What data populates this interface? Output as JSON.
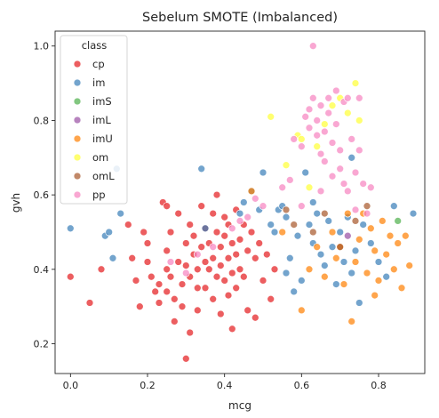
{
  "chart_data": {
    "type": "scatter",
    "title": "Sebelum SMOTE (Imbalanced)",
    "xlabel": "mcg",
    "ylabel": "gvh",
    "xlim": [
      -0.04,
      0.92
    ],
    "ylim": [
      0.12,
      1.04
    ],
    "xticks": [
      0.0,
      0.2,
      0.4,
      0.6,
      0.8
    ],
    "yticks": [
      0.2,
      0.4,
      0.6,
      0.8,
      1.0
    ],
    "xtick_labels": [
      "0.0",
      "0.2",
      "0.4",
      "0.6",
      "0.8"
    ],
    "ytick_labels": [
      "0.2",
      "0.4",
      "0.6",
      "0.8",
      "1.0"
    ],
    "grid": false,
    "legend": {
      "title": "class",
      "placement": "top-left"
    },
    "series": [
      {
        "name": "cp",
        "color": "#e41a1c",
        "points": [
          [
            0.0,
            0.38
          ],
          [
            0.05,
            0.31
          ],
          [
            0.08,
            0.4
          ],
          [
            0.15,
            0.52
          ],
          [
            0.16,
            0.43
          ],
          [
            0.17,
            0.37
          ],
          [
            0.18,
            0.3
          ],
          [
            0.19,
            0.5
          ],
          [
            0.2,
            0.47
          ],
          [
            0.2,
            0.42
          ],
          [
            0.21,
            0.38
          ],
          [
            0.22,
            0.34
          ],
          [
            0.23,
            0.36
          ],
          [
            0.23,
            0.31
          ],
          [
            0.24,
            0.58
          ],
          [
            0.25,
            0.57
          ],
          [
            0.25,
            0.45
          ],
          [
            0.25,
            0.4
          ],
          [
            0.25,
            0.34
          ],
          [
            0.26,
            0.5
          ],
          [
            0.26,
            0.38
          ],
          [
            0.27,
            0.32
          ],
          [
            0.27,
            0.26
          ],
          [
            0.28,
            0.55
          ],
          [
            0.28,
            0.42
          ],
          [
            0.29,
            0.36
          ],
          [
            0.29,
            0.3
          ],
          [
            0.3,
            0.47
          ],
          [
            0.3,
            0.41
          ],
          [
            0.3,
            0.16
          ],
          [
            0.31,
            0.52
          ],
          [
            0.31,
            0.38
          ],
          [
            0.31,
            0.23
          ],
          [
            0.32,
            0.49
          ],
          [
            0.32,
            0.44
          ],
          [
            0.33,
            0.4
          ],
          [
            0.33,
            0.35
          ],
          [
            0.33,
            0.29
          ],
          [
            0.34,
            0.57
          ],
          [
            0.34,
            0.46
          ],
          [
            0.35,
            0.51
          ],
          [
            0.35,
            0.42
          ],
          [
            0.35,
            0.35
          ],
          [
            0.36,
            0.47
          ],
          [
            0.36,
            0.4
          ],
          [
            0.37,
            0.55
          ],
          [
            0.37,
            0.43
          ],
          [
            0.37,
            0.32
          ],
          [
            0.38,
            0.6
          ],
          [
            0.38,
            0.5
          ],
          [
            0.38,
            0.38
          ],
          [
            0.39,
            0.46
          ],
          [
            0.39,
            0.41
          ],
          [
            0.39,
            0.28
          ],
          [
            0.4,
            0.54
          ],
          [
            0.4,
            0.49
          ],
          [
            0.4,
            0.37
          ],
          [
            0.41,
            0.52
          ],
          [
            0.41,
            0.43
          ],
          [
            0.41,
            0.33
          ],
          [
            0.42,
            0.47
          ],
          [
            0.42,
            0.39
          ],
          [
            0.42,
            0.24
          ],
          [
            0.43,
            0.56
          ],
          [
            0.43,
            0.44
          ],
          [
            0.43,
            0.35
          ],
          [
            0.44,
            0.48
          ],
          [
            0.44,
            0.4
          ],
          [
            0.45,
            0.52
          ],
          [
            0.45,
            0.38
          ],
          [
            0.46,
            0.45
          ],
          [
            0.46,
            0.29
          ],
          [
            0.47,
            0.5
          ],
          [
            0.48,
            0.43
          ],
          [
            0.48,
            0.27
          ],
          [
            0.49,
            0.47
          ],
          [
            0.5,
            0.37
          ],
          [
            0.51,
            0.44
          ],
          [
            0.52,
            0.32
          ],
          [
            0.53,
            0.4
          ]
        ]
      },
      {
        "name": "im",
        "color": "#377eb8",
        "points": [
          [
            0.0,
            0.51
          ],
          [
            0.09,
            0.49
          ],
          [
            0.1,
            0.5
          ],
          [
            0.11,
            0.43
          ],
          [
            0.12,
            0.67
          ],
          [
            0.13,
            0.55
          ],
          [
            0.34,
            0.67
          ],
          [
            0.35,
            0.51
          ],
          [
            0.44,
            0.55
          ],
          [
            0.45,
            0.58
          ],
          [
            0.47,
            0.61
          ],
          [
            0.49,
            0.56
          ],
          [
            0.5,
            0.66
          ],
          [
            0.52,
            0.52
          ],
          [
            0.53,
            0.5
          ],
          [
            0.54,
            0.56
          ],
          [
            0.55,
            0.57
          ],
          [
            0.56,
            0.54
          ],
          [
            0.56,
            0.39
          ],
          [
            0.57,
            0.43
          ],
          [
            0.58,
            0.34
          ],
          [
            0.59,
            0.49
          ],
          [
            0.6,
            0.37
          ],
          [
            0.61,
            0.66
          ],
          [
            0.62,
            0.52
          ],
          [
            0.63,
            0.47
          ],
          [
            0.63,
            0.58
          ],
          [
            0.64,
            0.55
          ],
          [
            0.65,
            0.44
          ],
          [
            0.66,
            0.41
          ],
          [
            0.67,
            0.53
          ],
          [
            0.68,
            0.46
          ],
          [
            0.69,
            0.36
          ],
          [
            0.7,
            0.5
          ],
          [
            0.71,
            0.42
          ],
          [
            0.72,
            0.54
          ],
          [
            0.73,
            0.39
          ],
          [
            0.74,
            0.45
          ],
          [
            0.75,
            0.31
          ],
          [
            0.76,
            0.52
          ],
          [
            0.78,
            0.47
          ],
          [
            0.8,
            0.42
          ],
          [
            0.82,
            0.38
          ],
          [
            0.84,
            0.57
          ],
          [
            0.89,
            0.55
          ],
          [
            0.73,
            0.7
          ]
        ]
      },
      {
        "name": "imS",
        "color": "#4daf4a",
        "points": [
          [
            0.85,
            0.53
          ]
        ]
      },
      {
        "name": "imL",
        "color": "#984ea3",
        "points": [
          [
            0.72,
            0.49
          ]
        ]
      },
      {
        "name": "imU",
        "color": "#ff7f00",
        "points": [
          [
            0.47,
            0.61
          ],
          [
            0.55,
            0.5
          ],
          [
            0.6,
            0.29
          ],
          [
            0.62,
            0.4
          ],
          [
            0.64,
            0.46
          ],
          [
            0.66,
            0.38
          ],
          [
            0.68,
            0.5
          ],
          [
            0.69,
            0.43
          ],
          [
            0.7,
            0.46
          ],
          [
            0.71,
            0.36
          ],
          [
            0.72,
            0.55
          ],
          [
            0.73,
            0.26
          ],
          [
            0.74,
            0.42
          ],
          [
            0.75,
            0.48
          ],
          [
            0.76,
            0.55
          ],
          [
            0.77,
            0.39
          ],
          [
            0.78,
            0.51
          ],
          [
            0.79,
            0.45
          ],
          [
            0.8,
            0.37
          ],
          [
            0.81,
            0.53
          ],
          [
            0.82,
            0.44
          ],
          [
            0.83,
            0.49
          ],
          [
            0.84,
            0.4
          ],
          [
            0.85,
            0.47
          ],
          [
            0.86,
            0.35
          ],
          [
            0.87,
            0.49
          ],
          [
            0.88,
            0.41
          ],
          [
            0.79,
            0.33
          ]
        ]
      },
      {
        "name": "om",
        "color": "#ffff33",
        "points": [
          [
            0.52,
            0.81
          ],
          [
            0.56,
            0.68
          ],
          [
            0.59,
            0.76
          ],
          [
            0.6,
            0.75
          ],
          [
            0.62,
            0.62
          ],
          [
            0.64,
            0.73
          ],
          [
            0.66,
            0.79
          ],
          [
            0.68,
            0.84
          ],
          [
            0.7,
            0.86
          ],
          [
            0.72,
            0.82
          ],
          [
            0.74,
            0.9
          ],
          [
            0.75,
            0.8
          ]
        ]
      },
      {
        "name": "omL",
        "color": "#a65628",
        "points": [
          [
            0.56,
            0.56
          ],
          [
            0.58,
            0.52
          ],
          [
            0.63,
            0.5
          ],
          [
            0.66,
            0.55
          ],
          [
            0.7,
            0.46
          ],
          [
            0.74,
            0.53
          ],
          [
            0.77,
            0.57
          ]
        ]
      },
      {
        "name": "pp",
        "color": "#f781bf",
        "points": [
          [
            0.26,
            0.42
          ],
          [
            0.3,
            0.39
          ],
          [
            0.33,
            0.44
          ],
          [
            0.37,
            0.46
          ],
          [
            0.42,
            0.51
          ],
          [
            0.44,
            0.53
          ],
          [
            0.46,
            0.54
          ],
          [
            0.48,
            0.59
          ],
          [
            0.5,
            0.57
          ],
          [
            0.55,
            0.62
          ],
          [
            0.58,
            0.75
          ],
          [
            0.6,
            0.73
          ],
          [
            0.61,
            0.81
          ],
          [
            0.62,
            0.78
          ],
          [
            0.62,
            0.83
          ],
          [
            0.63,
            1.0
          ],
          [
            0.63,
            0.86
          ],
          [
            0.64,
            0.8
          ],
          [
            0.64,
            0.76
          ],
          [
            0.65,
            0.84
          ],
          [
            0.65,
            0.71
          ],
          [
            0.66,
            0.77
          ],
          [
            0.66,
            0.69
          ],
          [
            0.67,
            0.86
          ],
          [
            0.67,
            0.82
          ],
          [
            0.68,
            0.74
          ],
          [
            0.68,
            0.65
          ],
          [
            0.69,
            0.88
          ],
          [
            0.69,
            0.79
          ],
          [
            0.7,
            0.72
          ],
          [
            0.7,
            0.67
          ],
          [
            0.71,
            0.63
          ],
          [
            0.71,
            0.85
          ],
          [
            0.72,
            0.61
          ],
          [
            0.72,
            0.86
          ],
          [
            0.73,
            0.75
          ],
          [
            0.74,
            0.66
          ],
          [
            0.74,
            0.56
          ],
          [
            0.75,
            0.86
          ],
          [
            0.75,
            0.72
          ],
          [
            0.76,
            0.63
          ],
          [
            0.77,
            0.55
          ],
          [
            0.78,
            0.62
          ],
          [
            0.6,
            0.57
          ],
          [
            0.57,
            0.64
          ],
          [
            0.65,
            0.61
          ]
        ]
      }
    ]
  }
}
